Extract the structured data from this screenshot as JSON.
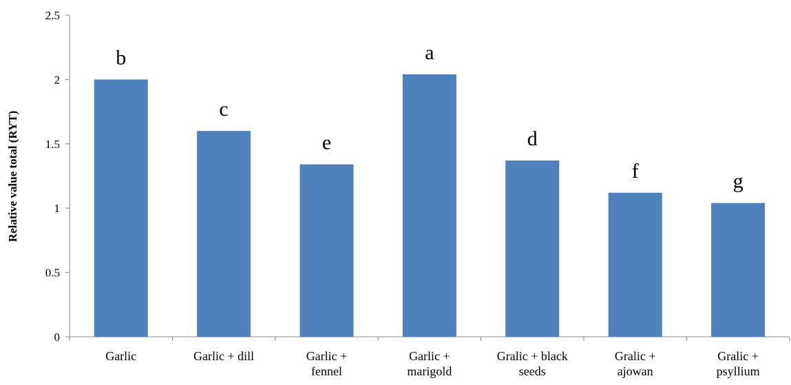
{
  "chart_data": {
    "type": "bar",
    "y_label": "Relative value total (RYT)",
    "categories": [
      "Garlic",
      "Garlic + dill",
      "Garlic +\nfennel",
      "Garlic +\nmarigold",
      "Gralic + black\nseeds",
      "Gralic +\najowan",
      "Gralic +\npsyllium"
    ],
    "values": [
      2.0,
      1.6,
      1.34,
      2.04,
      1.37,
      1.12,
      1.04
    ],
    "annotations": [
      "b",
      "c",
      "e",
      "a",
      "d",
      "f",
      "g"
    ],
    "color": "#4f81bd",
    "ylim": [
      0,
      2.5
    ],
    "yticks": [
      0,
      0.5,
      1,
      1.5,
      2,
      2.5
    ],
    "grid": false
  }
}
